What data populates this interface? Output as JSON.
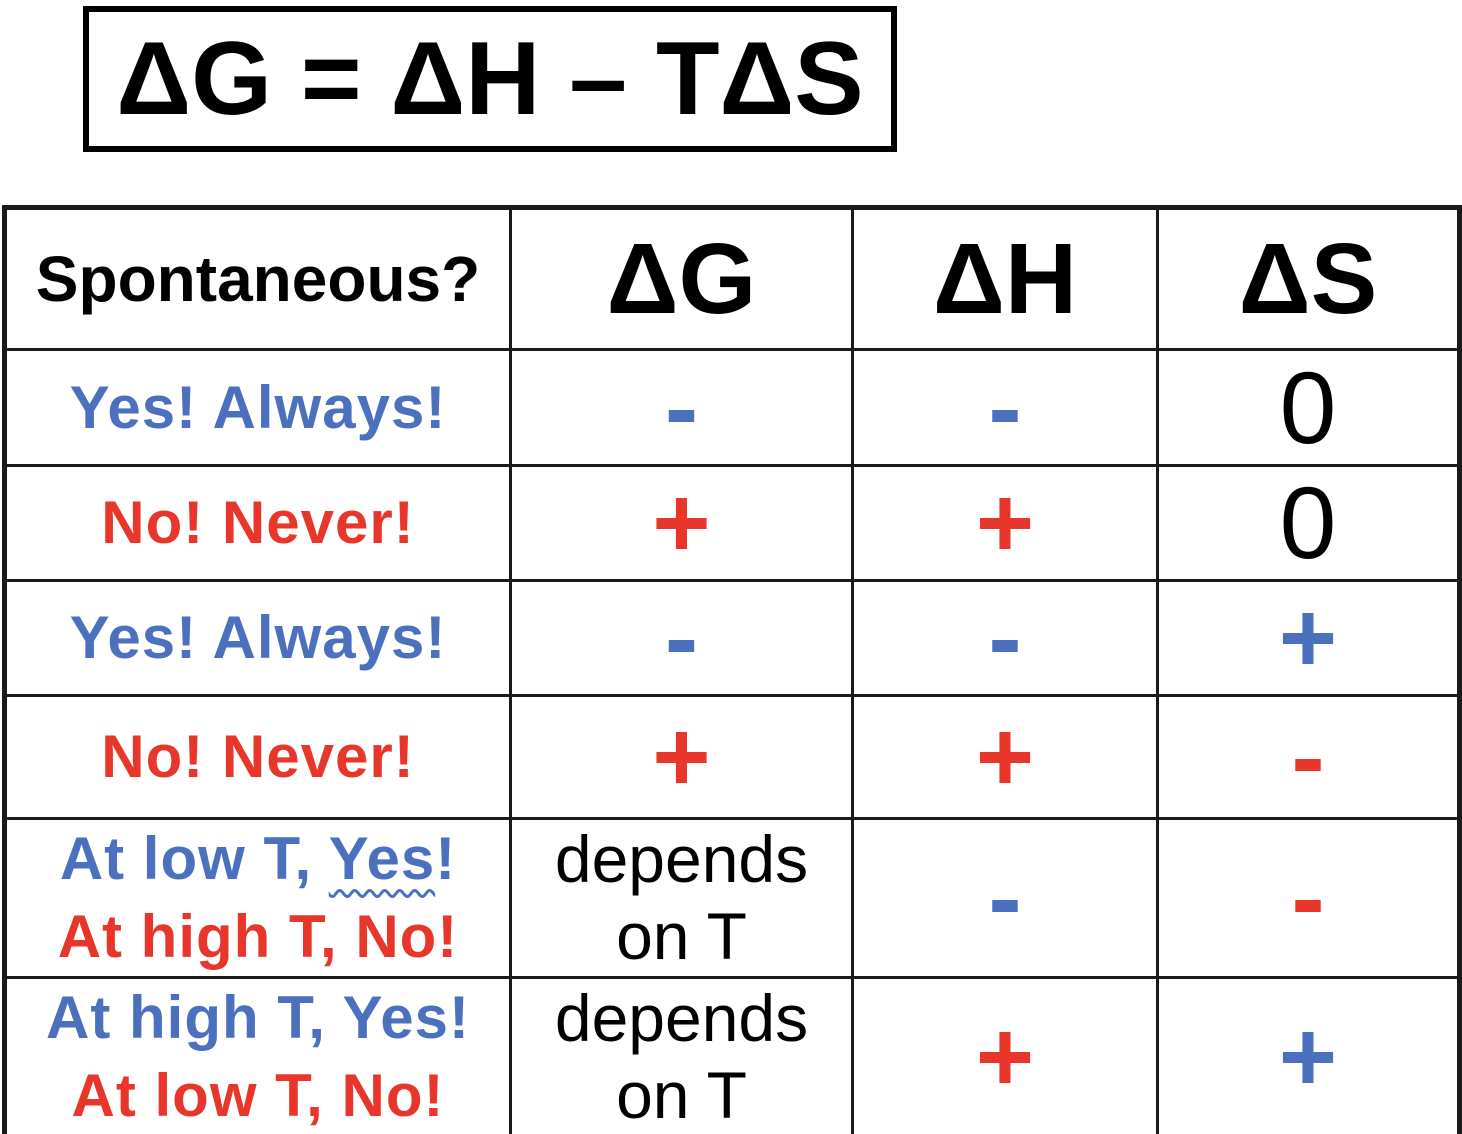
{
  "formula": {
    "text": "ΔG = ΔH – TΔS"
  },
  "colors": {
    "blue": "#4B70BD",
    "red": "#E8362A",
    "black": "#000000",
    "line": "#1a1a1a"
  },
  "table": {
    "headers": [
      {
        "id": "spontaneous",
        "label": "Spontaneous?"
      },
      {
        "id": "delta-g",
        "label": "ΔG"
      },
      {
        "id": "delta-h",
        "label": "ΔH"
      },
      {
        "id": "delta-s",
        "label": "ΔS"
      }
    ],
    "rows": [
      {
        "label_lines": [
          [
            {
              "text": "Yes! Always!",
              "color": "blue"
            }
          ]
        ],
        "cells": [
          {
            "lines": [
              "-"
            ],
            "color": "blue",
            "style": "sign"
          },
          {
            "lines": [
              "-"
            ],
            "color": "blue",
            "style": "sign"
          },
          {
            "lines": [
              "0"
            ],
            "color": "black",
            "style": "zero"
          }
        ]
      },
      {
        "label_lines": [
          [
            {
              "text": "No! Never!",
              "color": "red"
            }
          ]
        ],
        "cells": [
          {
            "lines": [
              "+"
            ],
            "color": "red",
            "style": "sign"
          },
          {
            "lines": [
              "+"
            ],
            "color": "red",
            "style": "sign"
          },
          {
            "lines": [
              "0"
            ],
            "color": "black",
            "style": "zero"
          }
        ]
      },
      {
        "label_lines": [
          [
            {
              "text": "Yes! Always!",
              "color": "blue"
            }
          ]
        ],
        "cells": [
          {
            "lines": [
              "-"
            ],
            "color": "blue",
            "style": "sign"
          },
          {
            "lines": [
              "-"
            ],
            "color": "blue",
            "style": "sign"
          },
          {
            "lines": [
              "+"
            ],
            "color": "blue",
            "style": "sign"
          }
        ]
      },
      {
        "label_lines": [
          [
            {
              "text": "No! Never!",
              "color": "red"
            }
          ]
        ],
        "cells": [
          {
            "lines": [
              "+"
            ],
            "color": "red",
            "style": "sign"
          },
          {
            "lines": [
              "+"
            ],
            "color": "red",
            "style": "sign"
          },
          {
            "lines": [
              "-"
            ],
            "color": "red",
            "style": "sign"
          }
        ]
      },
      {
        "label_lines": [
          [
            {
              "text": "At low T, ",
              "color": "blue"
            },
            {
              "text": "Yes",
              "color": "blue",
              "wavy": true
            },
            {
              "text": "!",
              "color": "blue"
            }
          ],
          [
            {
              "text": "At high T, No!",
              "color": "red"
            }
          ]
        ],
        "cells": [
          {
            "lines": [
              "depends",
              "on T"
            ],
            "color": "black",
            "style": "depends"
          },
          {
            "lines": [
              "-"
            ],
            "color": "blue",
            "style": "sign"
          },
          {
            "lines": [
              "-"
            ],
            "color": "red",
            "style": "sign"
          }
        ]
      },
      {
        "label_lines": [
          [
            {
              "text": "At high T, Yes!",
              "color": "blue"
            }
          ],
          [
            {
              "text": "At low T, No!",
              "color": "red"
            }
          ]
        ],
        "cells": [
          {
            "lines": [
              "depends",
              "on T"
            ],
            "color": "black",
            "style": "depends"
          },
          {
            "lines": [
              "+"
            ],
            "color": "red",
            "style": "sign"
          },
          {
            "lines": [
              "+"
            ],
            "color": "blue",
            "style": "sign"
          }
        ]
      }
    ]
  }
}
